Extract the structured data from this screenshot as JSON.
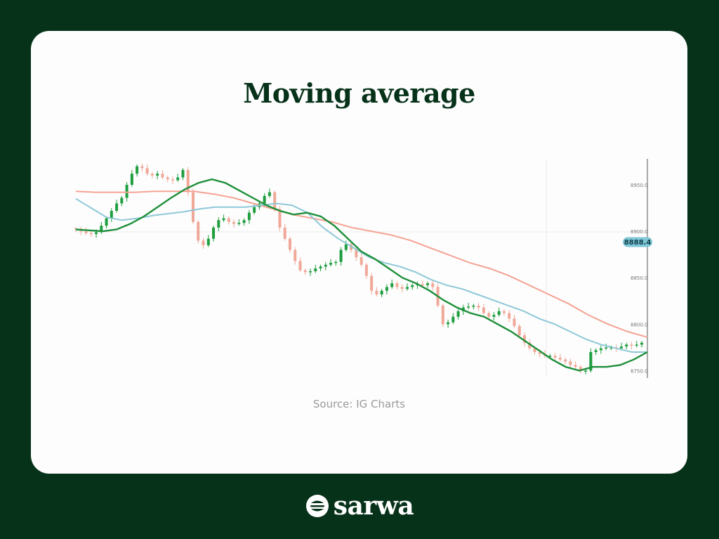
{
  "title": "Moving average",
  "source": "Source: IG Charts",
  "brand": {
    "name": "sarwa"
  },
  "colors": {
    "background": "#07321a",
    "card": "#fdfdfd",
    "bullish": "#1f9e3f",
    "bearish": "#f0a898",
    "ma_short": "#1e8f3a",
    "ma_medium": "#8ec8d8",
    "ma_long": "#f4a393",
    "price_tag": "#7fc6d6"
  },
  "chart_data": {
    "type": "candlestick",
    "y_ticks": [
      "8950.0",
      "8900.0",
      "8850.0",
      "8800.0",
      "8750.0"
    ],
    "y_tick_values": [
      8950,
      8900,
      8850,
      8800,
      8750
    ],
    "ylim": [
      8742,
      8978
    ],
    "current_price": "8888.4",
    "current_price_value": 8888.4,
    "grid": false,
    "closes": [
      8902,
      8900,
      8898,
      8897,
      8899,
      8906,
      8914,
      8922,
      8930,
      8936,
      8950,
      8962,
      8970,
      8968,
      8962,
      8960,
      8962,
      8958,
      8956,
      8955,
      8958,
      8966,
      8942,
      8910,
      8890,
      8885,
      8892,
      8904,
      8912,
      8914,
      8910,
      8908,
      8909,
      8912,
      8920,
      8926,
      8930,
      8938,
      8942,
      8924,
      8904,
      8892,
      8880,
      8868,
      8858,
      8856,
      8857,
      8860,
      8862,
      8864,
      8866,
      8867,
      8880,
      8886,
      8880,
      8872,
      8864,
      8852,
      8836,
      8832,
      8836,
      8840,
      8844,
      8840,
      8838,
      8840,
      8842,
      8843,
      8842,
      8844,
      8840,
      8820,
      8800,
      8802,
      8808,
      8814,
      8818,
      8819,
      8820,
      8818,
      8812,
      8808,
      8810,
      8814,
      8812,
      8806,
      8798,
      8788,
      8780,
      8774,
      8770,
      8768,
      8766,
      8766,
      8764,
      8762,
      8760,
      8756,
      8754,
      8750,
      8750,
      8770,
      8772,
      8774,
      8775,
      8775,
      8774,
      8776,
      8778,
      8777,
      8778,
      8780
    ],
    "series": [
      {
        "name": "",
        "values": [
          8902,
          8901,
          8900,
          8902,
          8908,
          8916,
          8926,
          8936,
          8945,
          8952,
          8956,
          8952,
          8944,
          8936,
          8928,
          8922,
          8918,
          8920,
          8916,
          8906,
          8892,
          8878,
          8870,
          8860,
          8850,
          8844,
          8836,
          8826,
          8818,
          8812,
          8808,
          8800,
          8792,
          8782,
          8772,
          8762,
          8754,
          8750,
          8754,
          8754,
          8756,
          8762,
          8770
        ]
      },
      {
        "name": "",
        "values": [
          8935,
          8925,
          8915,
          8912,
          8914,
          8917,
          8919,
          8921,
          8924,
          8926,
          8926,
          8926,
          8928,
          8930,
          8928,
          8920,
          8904,
          8892,
          8882,
          8872,
          8866,
          8862,
          8856,
          8848,
          8842,
          8838,
          8832,
          8826,
          8820,
          8814,
          8806,
          8800,
          8792,
          8784,
          8778,
          8774,
          8770,
          8770
        ]
      },
      {
        "name": "",
        "values": [
          8943,
          8942,
          8942,
          8942,
          8943,
          8943,
          8943,
          8940,
          8936,
          8930,
          8924,
          8918,
          8914,
          8910,
          8904,
          8900,
          8896,
          8890,
          8882,
          8874,
          8866,
          8860,
          8852,
          8842,
          8832,
          8822,
          8810,
          8800,
          8792,
          8786
        ]
      }
    ]
  }
}
